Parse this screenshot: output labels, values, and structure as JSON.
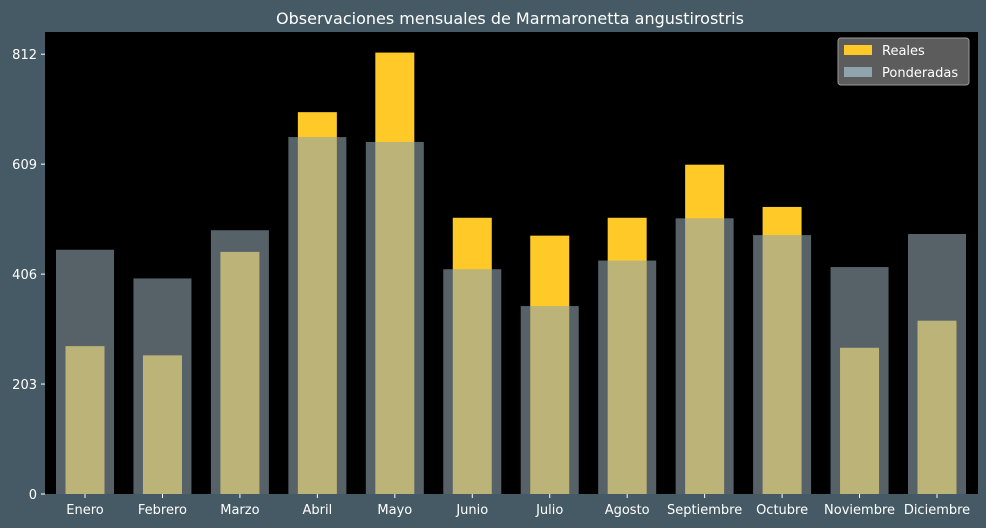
{
  "chart_data": {
    "type": "bar",
    "title": "Observaciones mensuales de Marmaronetta angustirostris",
    "xlabel": "",
    "ylabel": "",
    "categories": [
      "Enero",
      "Febrero",
      "Marzo",
      "Abril",
      "Mayo",
      "Junio",
      "Julio",
      "Agosto",
      "Septiembre",
      "Octubre",
      "Noviembre",
      "Diciembre"
    ],
    "yticks": [
      0,
      203,
      406,
      609,
      812
    ],
    "ylim": [
      0,
      853
    ],
    "grid": false,
    "legend_position": "top-right",
    "series": [
      {
        "name": "Reales",
        "color": "#ffca28",
        "values": [
          273,
          256,
          447,
          705,
          815,
          510,
          477,
          510,
          608,
          530,
          270,
          320
        ]
      },
      {
        "name": "Ponderadas",
        "color": "#90a4ae",
        "values": [
          451,
          398,
          487,
          659,
          650,
          415,
          347,
          431,
          509,
          478,
          419,
          480
        ]
      }
    ]
  },
  "colors": {
    "background": "#455a64",
    "plot_background": "#000000",
    "text": "#ffffff"
  }
}
